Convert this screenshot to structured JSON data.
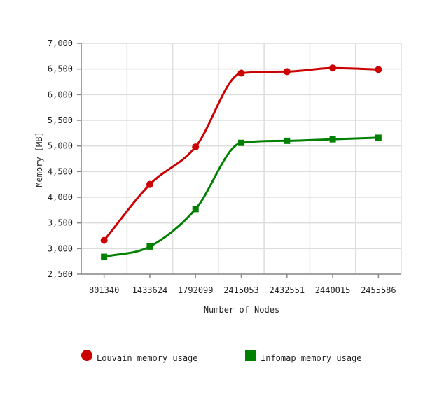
{
  "chart_data": {
    "type": "line",
    "title": "",
    "xlabel": "Number of Nodes",
    "ylabel": "Memory [MB]",
    "categories": [
      "801340",
      "1433624",
      "1792099",
      "2415053",
      "2432551",
      "2440015",
      "2455586"
    ],
    "ylim": [
      2500,
      7000
    ],
    "y_ticks": [
      2500,
      3000,
      3500,
      4000,
      4500,
      5000,
      5500,
      6000,
      6500,
      7000
    ],
    "y_tick_labels": [
      "2,500",
      "3,000",
      "3,500",
      "4,000",
      "4,500",
      "5,000",
      "5,500",
      "6,000",
      "6,500",
      "7,000"
    ],
    "grid": true,
    "legend_position": "bottom",
    "series": [
      {
        "name": "Louvain memory usage",
        "color": "#cc0000",
        "marker": "circle",
        "values": [
          3160,
          4250,
          4980,
          6420,
          6450,
          6520,
          6490
        ]
      },
      {
        "name": "Infomap memory usage",
        "color": "#008000",
        "marker": "square",
        "values": [
          2840,
          3040,
          3770,
          5060,
          5100,
          5130,
          5160
        ]
      }
    ]
  }
}
